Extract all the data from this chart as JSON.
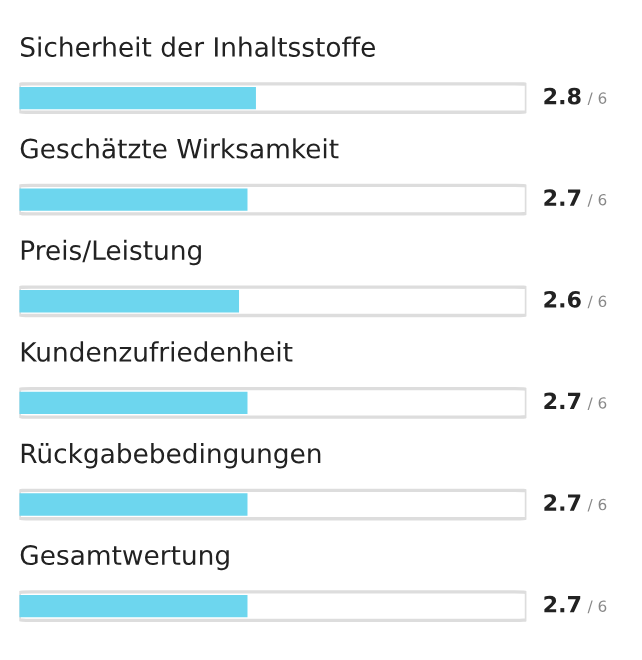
{
  "chart_data": {
    "type": "bar",
    "orientation": "horizontal",
    "categories": [
      "Sicherheit der Inhaltsstoffe",
      "Geschätzte Wirksamkeit",
      "Preis/Leistung",
      "Kundenzufriedenheit",
      "Rückgabebedingungen",
      "Gesamtwertung"
    ],
    "values": [
      2.8,
      2.7,
      2.6,
      2.7,
      2.7,
      2.7
    ],
    "data_labels": true,
    "color": "#6dd6ee",
    "xlim": [
      0,
      6
    ],
    "annotations": [
      "/ 6",
      "/ 6",
      "/ 6",
      "/ 6",
      "/ 6",
      "/ 6"
    ]
  }
}
